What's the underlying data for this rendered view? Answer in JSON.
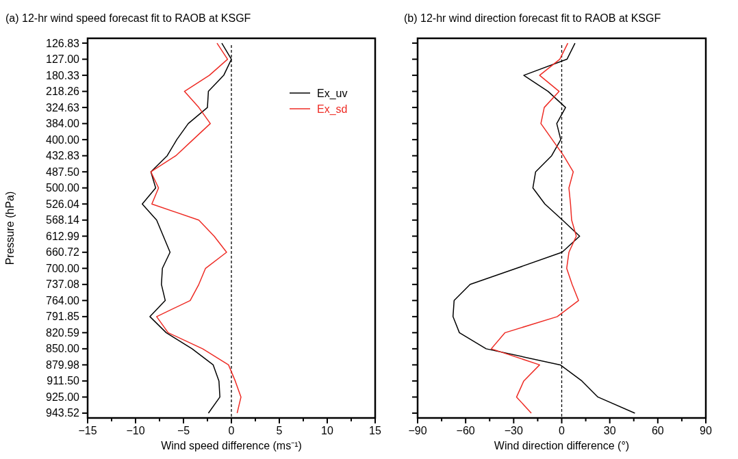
{
  "chart_data": [
    {
      "type": "line",
      "title": "(a) 12-hr wind speed forecast fit to RAOB at KSGF",
      "xlabel": "Wind speed difference (ms⁻¹)",
      "ylabel": "Pressure (hPa)",
      "orientation": "horizontal",
      "categories": [
        "126.83",
        "127.00",
        "180.33",
        "218.26",
        "324.63",
        "384.00",
        "400.00",
        "432.83",
        "487.50",
        "500.00",
        "526.04",
        "568.14",
        "612.99",
        "660.72",
        "700.00",
        "737.08",
        "764.00",
        "791.85",
        "820.59",
        "850.00",
        "879.98",
        "911.50",
        "925.00",
        "943.52"
      ],
      "xlim": [
        -15,
        15
      ],
      "xticks": [
        -15,
        {
          "value": -12.5,
          "label": null
        },
        -10,
        {
          "value": -7.5,
          "label": null
        },
        -5,
        {
          "value": -2.5,
          "label": null
        },
        0,
        {
          "value": 2.5,
          "label": null
        },
        5,
        {
          "value": 7.5,
          "label": null
        },
        10,
        {
          "value": 12.5,
          "label": null
        },
        15
      ],
      "series": [
        {
          "name": "Ex_uv",
          "color": "#000000",
          "values": [
            -1.0,
            0.0,
            -0.8,
            -2.4,
            -2.5,
            -4.5,
            -5.7,
            -6.7,
            -8.4,
            -7.9,
            -9.3,
            -7.8,
            -7.1,
            -6.4,
            -7.2,
            -7.3,
            -6.9,
            -8.5,
            -6.8,
            -4.1,
            -1.9,
            -1.3,
            -1.2,
            -2.4
          ]
        },
        {
          "name": "Ex_sd",
          "color": "#ee2b24",
          "values": [
            -1.5,
            -0.4,
            -2.3,
            -4.9,
            -3.4,
            -2.2,
            -4.0,
            -5.8,
            -8.4,
            -7.6,
            -8.3,
            -3.4,
            -1.8,
            -0.5,
            -2.7,
            -3.4,
            -4.3,
            -7.8,
            -6.6,
            -3.0,
            -0.3,
            0.4,
            1.0,
            0.6
          ]
        }
      ],
      "ref_lines": [
        {
          "axis": "x",
          "value": 0,
          "color": "#000000",
          "line_style": "dashed"
        }
      ],
      "legend": "top right",
      "grid": false,
      "marker": "none",
      "line_style": "solid"
    },
    {
      "type": "line",
      "title": "(b) 12-hr wind direction forecast fit to RAOB at KSGF",
      "xlabel": "Wind direction difference (°)",
      "orientation": "horizontal",
      "tick_labels": "x",
      "categories": [
        "126.83",
        "127.00",
        "180.33",
        "218.26",
        "324.63",
        "384.00",
        "400.00",
        "432.83",
        "487.50",
        "500.00",
        "526.04",
        "568.14",
        "612.99",
        "660.72",
        "700.00",
        "737.08",
        "764.00",
        "791.85",
        "820.59",
        "850.00",
        "879.98",
        "911.50",
        "925.00",
        "943.52"
      ],
      "xlim": [
        -90,
        90
      ],
      "xticks": [
        -90,
        {
          "value": -75,
          "label": null
        },
        -60,
        {
          "value": -45,
          "label": null
        },
        -30,
        {
          "value": -15,
          "label": null
        },
        0,
        {
          "value": 15,
          "label": null
        },
        30,
        {
          "value": 45,
          "label": null
        },
        60,
        {
          "value": 75,
          "label": null
        },
        90
      ],
      "series": [
        {
          "color": "#000000",
          "values": [
            8.3,
            3.3,
            -23.7,
            -8.5,
            2.4,
            -3.1,
            -0.6,
            -6.3,
            -16.3,
            -18.0,
            -10.5,
            0.5,
            11.2,
            0.2,
            -28.3,
            -57.2,
            -67.2,
            -67.9,
            -63.9,
            -47.2,
            -0.9,
            12.6,
            22.6,
            45.7
          ]
        },
        {
          "color": "#ee2b24",
          "values": [
            3.8,
            -1.2,
            -13.8,
            -1.6,
            -10.9,
            -13.0,
            -5.9,
            1.2,
            7.2,
            4.5,
            5.5,
            6.2,
            9.1,
            4.5,
            3.1,
            6.5,
            10.5,
            -2.8,
            -35.4,
            -44.0,
            -13.8,
            -23.7,
            -28.2,
            -19.0
          ]
        }
      ],
      "ref_lines": [
        {
          "axis": "x",
          "value": 0,
          "color": "#000000",
          "line_style": "dashed"
        }
      ],
      "legend": false,
      "grid": false,
      "marker": "none",
      "line_style": "solid"
    }
  ]
}
